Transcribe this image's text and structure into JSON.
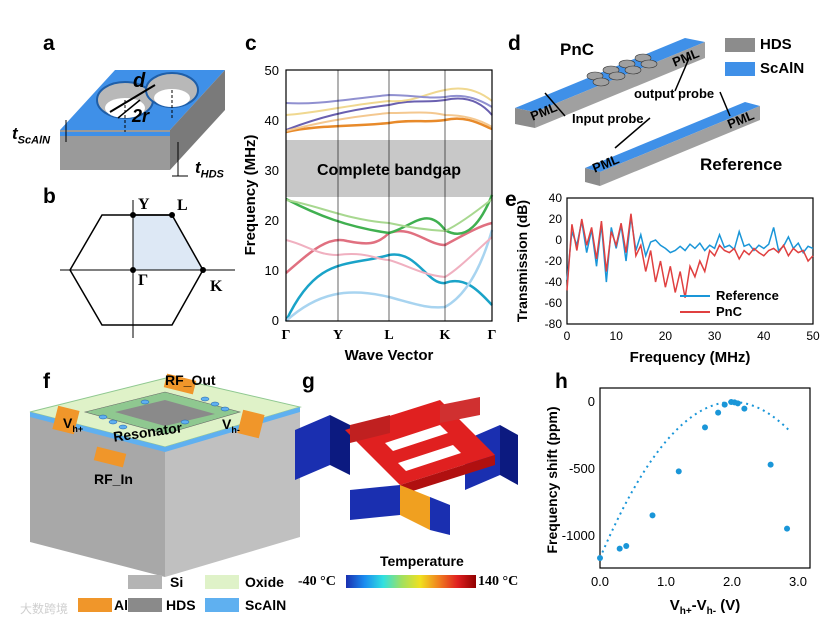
{
  "panels": {
    "a": "a",
    "b": "b",
    "c": "c",
    "d": "d",
    "e": "e",
    "f": "f",
    "g": "g",
    "h": "h"
  },
  "panel_a": {
    "labels": {
      "d": "d",
      "two_r": "2r",
      "t_scaln": "t",
      "t_scaln_sub": "ScAlN",
      "t_hds": "t",
      "t_hds_sub": "HDS"
    }
  },
  "panel_b": {
    "labels": {
      "Y": "Y",
      "L": "L",
      "Gamma": "Γ",
      "K": "K"
    }
  },
  "panel_c": {
    "ylabel": "Frequency (MHz)",
    "xlabel": "Wave Vector",
    "yticks": [
      "0",
      "10",
      "20",
      "30",
      "40",
      "50"
    ],
    "xticks": [
      "Γ",
      "Y",
      "L",
      "K",
      "Γ"
    ],
    "bandgap_label": "Complete bandgap",
    "bandgap_range": [
      24.5,
      36.8
    ]
  },
  "panel_d": {
    "legend": [
      {
        "label": "HDS",
        "color": "#8c8c8c"
      },
      {
        "label": "ScAlN",
        "color": "#3f90e8"
      }
    ],
    "labels": {
      "pnc": "PnC",
      "reference": "Reference",
      "pml": "PML",
      "input_probe": "Input probe",
      "output_probe": "output probe"
    }
  },
  "chart_data": {
    "type": "line",
    "title": "",
    "xlabel": "Frequency (MHz)",
    "ylabel": "Transmission (dB)",
    "xlim": [
      0,
      50
    ],
    "ylim": [
      -80,
      40
    ],
    "xticks": [
      "0",
      "10",
      "20",
      "30",
      "40",
      "50"
    ],
    "yticks": [
      "-80",
      "-60",
      "-40",
      "-20",
      "0",
      "20",
      "40"
    ],
    "legend": "bottom-right",
    "series": [
      {
        "name": "Reference",
        "color": "#1a96d8",
        "x": [
          0,
          1,
          2,
          3,
          4,
          5,
          6,
          7,
          8,
          9,
          10,
          11,
          12,
          13,
          14,
          15,
          16,
          17,
          18,
          19,
          20,
          21,
          22,
          23,
          24,
          25,
          26,
          27,
          28,
          29,
          30,
          31,
          32,
          33,
          34,
          35,
          36,
          37,
          38,
          39,
          40,
          41,
          42,
          43,
          44,
          45,
          46,
          47,
          48,
          49,
          50
        ],
        "values": [
          -38,
          8,
          -5,
          18,
          -12,
          10,
          -25,
          15,
          -40,
          12,
          -8,
          14,
          -20,
          22,
          -10,
          5,
          -15,
          -2,
          0,
          -5,
          -8,
          -12,
          -10,
          -6,
          -10,
          -4,
          -8,
          -3,
          -10,
          -5,
          -8,
          5,
          -7,
          -5,
          -9,
          8,
          -6,
          -4,
          -10,
          -5,
          -8,
          -4,
          12,
          -10,
          -6,
          3,
          -8,
          -3,
          -12,
          -6,
          -8
        ]
      },
      {
        "name": "PnC",
        "color": "#e04040",
        "x": [
          0,
          1,
          2,
          3,
          4,
          5,
          6,
          7,
          8,
          9,
          10,
          11,
          12,
          13,
          14,
          15,
          16,
          17,
          18,
          19,
          20,
          21,
          22,
          23,
          24,
          25,
          26,
          27,
          28,
          29,
          30,
          31,
          32,
          33,
          34,
          35,
          36,
          37,
          38,
          39,
          40,
          41,
          42,
          43,
          44,
          45,
          46,
          47,
          48,
          49,
          50
        ],
        "values": [
          -48,
          15,
          -10,
          20,
          -5,
          12,
          -18,
          18,
          -30,
          8,
          -5,
          16,
          -12,
          25,
          -15,
          -5,
          -30,
          -10,
          -40,
          -20,
          -45,
          -25,
          -50,
          -30,
          -55,
          -25,
          -35,
          -20,
          -30,
          -10,
          -15,
          -5,
          -10,
          -12,
          -8,
          -18,
          -10,
          -14,
          -8,
          -12,
          -15,
          -10,
          -8,
          -12,
          -5,
          -15,
          -8,
          -12,
          -10,
          -20,
          -15
        ]
      }
    ]
  },
  "panel_f": {
    "labels": {
      "rf_out": "RF_Out",
      "rf_in": "RF_In",
      "vh_plus": "V",
      "vh_plus_sub": "h+",
      "vh_minus": "V",
      "vh_minus_sub": "h-",
      "resonator": "Resonator"
    },
    "legend": [
      {
        "label": "Si",
        "color": "#b4b4b4"
      },
      {
        "label": "Oxide",
        "color": "#dff2c8"
      },
      {
        "label": "Al",
        "color": "#f0962a"
      },
      {
        "label": "HDS",
        "color": "#8a8a8a"
      },
      {
        "label": "ScAlN",
        "color": "#5fb0f0"
      }
    ]
  },
  "panel_g": {
    "colorbar_title": "Temperature",
    "colorbar_min": "-40 °C",
    "colorbar_max": "140 °C"
  },
  "panel_h": {
    "ylabel": "Frequency shift (ppm)",
    "xlabel": "V",
    "xlabel_sub1": "h+",
    "xlabel_mid": "-V",
    "xlabel_sub2": "h-",
    "xlabel_unit": " (V)",
    "xticks": [
      "0.0",
      "1.0",
      "2.0",
      "3.0"
    ],
    "yticks": [
      "0",
      "-500",
      "-1000"
    ],
    "points": [
      [
        0,
        -1170
      ],
      [
        0.3,
        -1100
      ],
      [
        0.4,
        -1080
      ],
      [
        0.8,
        -850
      ],
      [
        1.2,
        -520
      ],
      [
        1.6,
        -190
      ],
      [
        1.8,
        -80
      ],
      [
        1.9,
        -20
      ],
      [
        2.0,
        0
      ],
      [
        2.05,
        -3
      ],
      [
        2.1,
        -10
      ],
      [
        2.2,
        -50
      ],
      [
        2.6,
        -470
      ],
      [
        2.85,
        -950
      ]
    ]
  },
  "watermark": "大数跨境"
}
